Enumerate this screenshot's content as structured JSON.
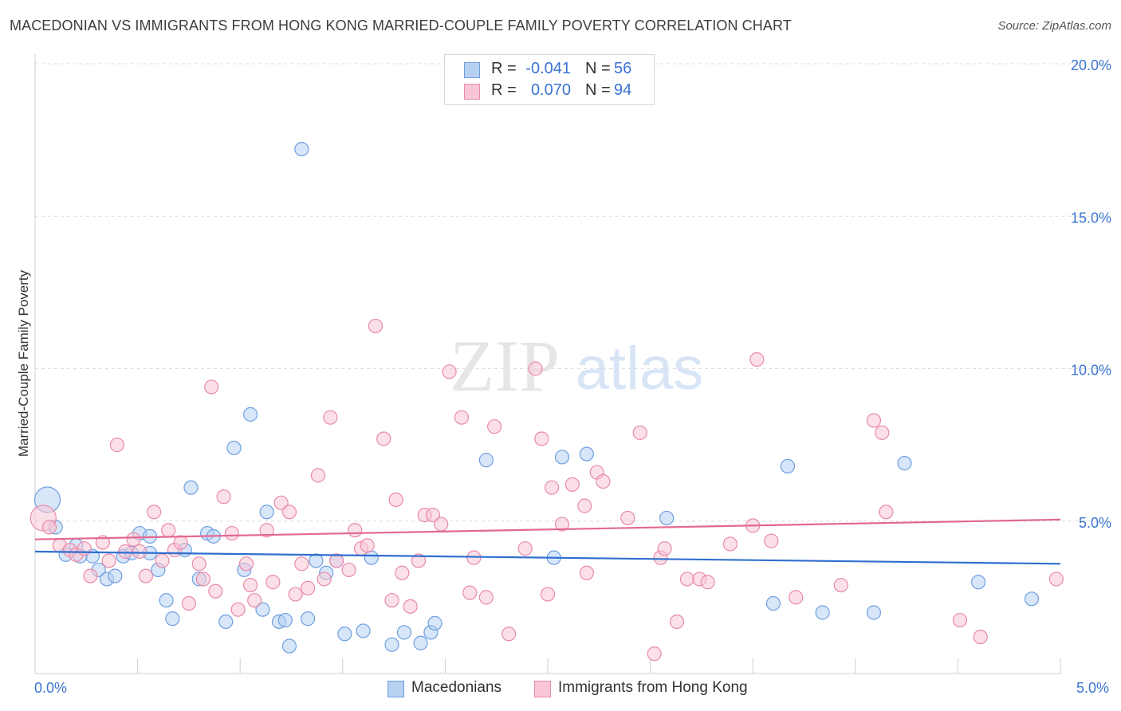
{
  "title": "MACEDONIAN VS IMMIGRANTS FROM HONG KONG MARRIED-COUPLE FAMILY POVERTY CORRELATION CHART",
  "source": "Source: ZipAtlas.com",
  "watermark": {
    "zip": "ZIP",
    "atlas": "atlas"
  },
  "legend": {
    "r_label": "R =",
    "n_label": "N =",
    "series": [
      {
        "name": "Macedonians",
        "r": "-0.041",
        "n": "56",
        "fill": "#b7d1f3",
        "stroke": "#6f9fe0"
      },
      {
        "name": "Immigrants from Hong Kong",
        "r": "0.070",
        "n": "94",
        "fill": "#f8c6d6",
        "stroke": "#e98aa9"
      }
    ]
  },
  "colors": {
    "blue_line": "#2f6fce",
    "pink_line": "#e26892",
    "tick_text": "#3a74d1",
    "grid": "#dcdcdc"
  },
  "chart_data": {
    "type": "scatter",
    "title": "MACEDONIAN VS IMMIGRANTS FROM HONG KONG MARRIED-COUPLE FAMILY POVERTY CORRELATION CHART",
    "xlabel": "",
    "ylabel": "Married-Couple Family Poverty",
    "xlim": [
      0,
      5
    ],
    "ylim": [
      0,
      20
    ],
    "x_tick_labels": [
      "0.0%",
      "5.0%"
    ],
    "y_ticks": [
      5,
      10,
      15,
      20
    ],
    "y_tick_labels": [
      "5.0%",
      "10.0%",
      "15.0%",
      "20.0%"
    ],
    "series": [
      {
        "name": "Macedonians",
        "trend": {
          "x": [
            0,
            5
          ],
          "y": [
            4.0,
            3.6
          ]
        },
        "points": [
          {
            "x": 0.06,
            "y": 5.7,
            "big": true
          },
          {
            "x": 0.1,
            "y": 4.8
          },
          {
            "x": 0.15,
            "y": 3.9
          },
          {
            "x": 0.2,
            "y": 4.2
          },
          {
            "x": 0.28,
            "y": 3.85
          },
          {
            "x": 0.31,
            "y": 3.4
          },
          {
            "x": 0.35,
            "y": 3.1
          },
          {
            "x": 0.39,
            "y": 3.2
          },
          {
            "x": 0.43,
            "y": 3.85
          },
          {
            "x": 0.47,
            "y": 3.95
          },
          {
            "x": 0.51,
            "y": 4.6
          },
          {
            "x": 0.56,
            "y": 4.5
          },
          {
            "x": 0.6,
            "y": 3.4
          },
          {
            "x": 0.64,
            "y": 2.4
          },
          {
            "x": 0.67,
            "y": 1.8
          },
          {
            "x": 0.73,
            "y": 4.05
          },
          {
            "x": 0.76,
            "y": 6.1
          },
          {
            "x": 0.8,
            "y": 3.1
          },
          {
            "x": 0.84,
            "y": 4.6
          },
          {
            "x": 0.87,
            "y": 4.5
          },
          {
            "x": 0.93,
            "y": 1.7
          },
          {
            "x": 0.97,
            "y": 7.4
          },
          {
            "x": 1.02,
            "y": 3.4
          },
          {
            "x": 1.05,
            "y": 8.5
          },
          {
            "x": 1.11,
            "y": 2.1
          },
          {
            "x": 1.13,
            "y": 5.3
          },
          {
            "x": 1.19,
            "y": 1.7
          },
          {
            "x": 1.22,
            "y": 1.75
          },
          {
            "x": 1.24,
            "y": 0.9
          },
          {
            "x": 1.3,
            "y": 17.2
          },
          {
            "x": 1.33,
            "y": 1.8
          },
          {
            "x": 1.37,
            "y": 3.7
          },
          {
            "x": 1.42,
            "y": 3.3
          },
          {
            "x": 1.47,
            "y": 3.7
          },
          {
            "x": 1.51,
            "y": 1.3
          },
          {
            "x": 1.6,
            "y": 1.4
          },
          {
            "x": 1.64,
            "y": 3.8
          },
          {
            "x": 1.74,
            "y": 0.95
          },
          {
            "x": 1.8,
            "y": 1.35
          },
          {
            "x": 1.88,
            "y": 1.0
          },
          {
            "x": 1.93,
            "y": 1.35
          },
          {
            "x": 1.95,
            "y": 1.65
          },
          {
            "x": 2.2,
            "y": 7.0
          },
          {
            "x": 2.53,
            "y": 3.8
          },
          {
            "x": 2.57,
            "y": 7.1
          },
          {
            "x": 2.69,
            "y": 7.2
          },
          {
            "x": 3.08,
            "y": 5.1
          },
          {
            "x": 3.6,
            "y": 2.3
          },
          {
            "x": 3.67,
            "y": 6.8
          },
          {
            "x": 3.84,
            "y": 2.0
          },
          {
            "x": 4.09,
            "y": 2.0
          },
          {
            "x": 4.24,
            "y": 6.9
          },
          {
            "x": 4.6,
            "y": 3.0
          },
          {
            "x": 4.86,
            "y": 2.45
          },
          {
            "x": 0.22,
            "y": 3.85
          },
          {
            "x": 0.56,
            "y": 3.95
          }
        ]
      },
      {
        "name": "Immigrants from Hong Kong",
        "trend": {
          "x": [
            0,
            5
          ],
          "y": [
            4.4,
            5.05
          ]
        },
        "points": [
          {
            "x": 0.04,
            "y": 5.1,
            "big": true
          },
          {
            "x": 0.07,
            "y": 4.8
          },
          {
            "x": 0.12,
            "y": 4.2
          },
          {
            "x": 0.17,
            "y": 4.05
          },
          {
            "x": 0.2,
            "y": 3.9
          },
          {
            "x": 0.24,
            "y": 4.1
          },
          {
            "x": 0.27,
            "y": 3.2
          },
          {
            "x": 0.33,
            "y": 4.3
          },
          {
            "x": 0.36,
            "y": 3.7
          },
          {
            "x": 0.4,
            "y": 7.5
          },
          {
            "x": 0.44,
            "y": 4.0
          },
          {
            "x": 0.48,
            "y": 4.4
          },
          {
            "x": 0.51,
            "y": 4.0
          },
          {
            "x": 0.54,
            "y": 3.2
          },
          {
            "x": 0.58,
            "y": 5.3
          },
          {
            "x": 0.62,
            "y": 3.7
          },
          {
            "x": 0.65,
            "y": 4.7
          },
          {
            "x": 0.68,
            "y": 4.05
          },
          {
            "x": 0.71,
            "y": 4.3
          },
          {
            "x": 0.75,
            "y": 2.3
          },
          {
            "x": 0.8,
            "y": 3.6
          },
          {
            "x": 0.82,
            "y": 3.1
          },
          {
            "x": 0.86,
            "y": 9.4
          },
          {
            "x": 0.88,
            "y": 2.7
          },
          {
            "x": 0.92,
            "y": 5.8
          },
          {
            "x": 0.96,
            "y": 4.6
          },
          {
            "x": 0.99,
            "y": 2.1
          },
          {
            "x": 1.03,
            "y": 3.6
          },
          {
            "x": 1.05,
            "y": 2.9
          },
          {
            "x": 1.07,
            "y": 2.4
          },
          {
            "x": 1.13,
            "y": 4.7
          },
          {
            "x": 1.16,
            "y": 3.0
          },
          {
            "x": 1.2,
            "y": 5.6
          },
          {
            "x": 1.24,
            "y": 5.3
          },
          {
            "x": 1.27,
            "y": 2.6
          },
          {
            "x": 1.3,
            "y": 3.6
          },
          {
            "x": 1.33,
            "y": 2.8
          },
          {
            "x": 1.38,
            "y": 6.5
          },
          {
            "x": 1.41,
            "y": 3.1
          },
          {
            "x": 1.44,
            "y": 8.4
          },
          {
            "x": 1.47,
            "y": 3.7
          },
          {
            "x": 1.53,
            "y": 3.4
          },
          {
            "x": 1.56,
            "y": 4.7
          },
          {
            "x": 1.59,
            "y": 4.1
          },
          {
            "x": 1.62,
            "y": 4.2
          },
          {
            "x": 1.66,
            "y": 11.4
          },
          {
            "x": 1.7,
            "y": 7.7
          },
          {
            "x": 1.74,
            "y": 2.4
          },
          {
            "x": 1.76,
            "y": 5.7
          },
          {
            "x": 1.79,
            "y": 3.3
          },
          {
            "x": 1.83,
            "y": 2.2
          },
          {
            "x": 1.87,
            "y": 3.7
          },
          {
            "x": 1.9,
            "y": 5.2
          },
          {
            "x": 1.94,
            "y": 5.2
          },
          {
            "x": 1.98,
            "y": 4.9
          },
          {
            "x": 2.02,
            "y": 9.9
          },
          {
            "x": 2.08,
            "y": 8.4
          },
          {
            "x": 2.12,
            "y": 2.65
          },
          {
            "x": 2.14,
            "y": 3.8
          },
          {
            "x": 2.2,
            "y": 2.5
          },
          {
            "x": 2.24,
            "y": 8.1
          },
          {
            "x": 2.31,
            "y": 1.3
          },
          {
            "x": 2.39,
            "y": 4.1
          },
          {
            "x": 2.44,
            "y": 10.0
          },
          {
            "x": 2.47,
            "y": 7.7
          },
          {
            "x": 2.5,
            "y": 2.6
          },
          {
            "x": 2.52,
            "y": 6.1
          },
          {
            "x": 2.57,
            "y": 4.9
          },
          {
            "x": 2.62,
            "y": 6.2
          },
          {
            "x": 2.68,
            "y": 5.5
          },
          {
            "x": 2.69,
            "y": 3.3
          },
          {
            "x": 2.74,
            "y": 6.6
          },
          {
            "x": 2.77,
            "y": 6.3
          },
          {
            "x": 2.89,
            "y": 5.1
          },
          {
            "x": 2.95,
            "y": 7.9
          },
          {
            "x": 3.02,
            "y": 0.65
          },
          {
            "x": 3.05,
            "y": 3.8
          },
          {
            "x": 3.07,
            "y": 4.1
          },
          {
            "x": 3.13,
            "y": 1.7
          },
          {
            "x": 3.18,
            "y": 3.1
          },
          {
            "x": 3.24,
            "y": 3.1
          },
          {
            "x": 3.28,
            "y": 3.0
          },
          {
            "x": 3.39,
            "y": 4.25
          },
          {
            "x": 3.5,
            "y": 4.85
          },
          {
            "x": 3.52,
            "y": 10.3
          },
          {
            "x": 3.59,
            "y": 4.35
          },
          {
            "x": 3.71,
            "y": 2.5
          },
          {
            "x": 3.93,
            "y": 2.9
          },
          {
            "x": 4.09,
            "y": 8.3
          },
          {
            "x": 4.13,
            "y": 7.9
          },
          {
            "x": 4.15,
            "y": 5.3
          },
          {
            "x": 4.51,
            "y": 1.75
          },
          {
            "x": 4.61,
            "y": 1.2
          },
          {
            "x": 4.98,
            "y": 3.1
          }
        ]
      }
    ]
  }
}
